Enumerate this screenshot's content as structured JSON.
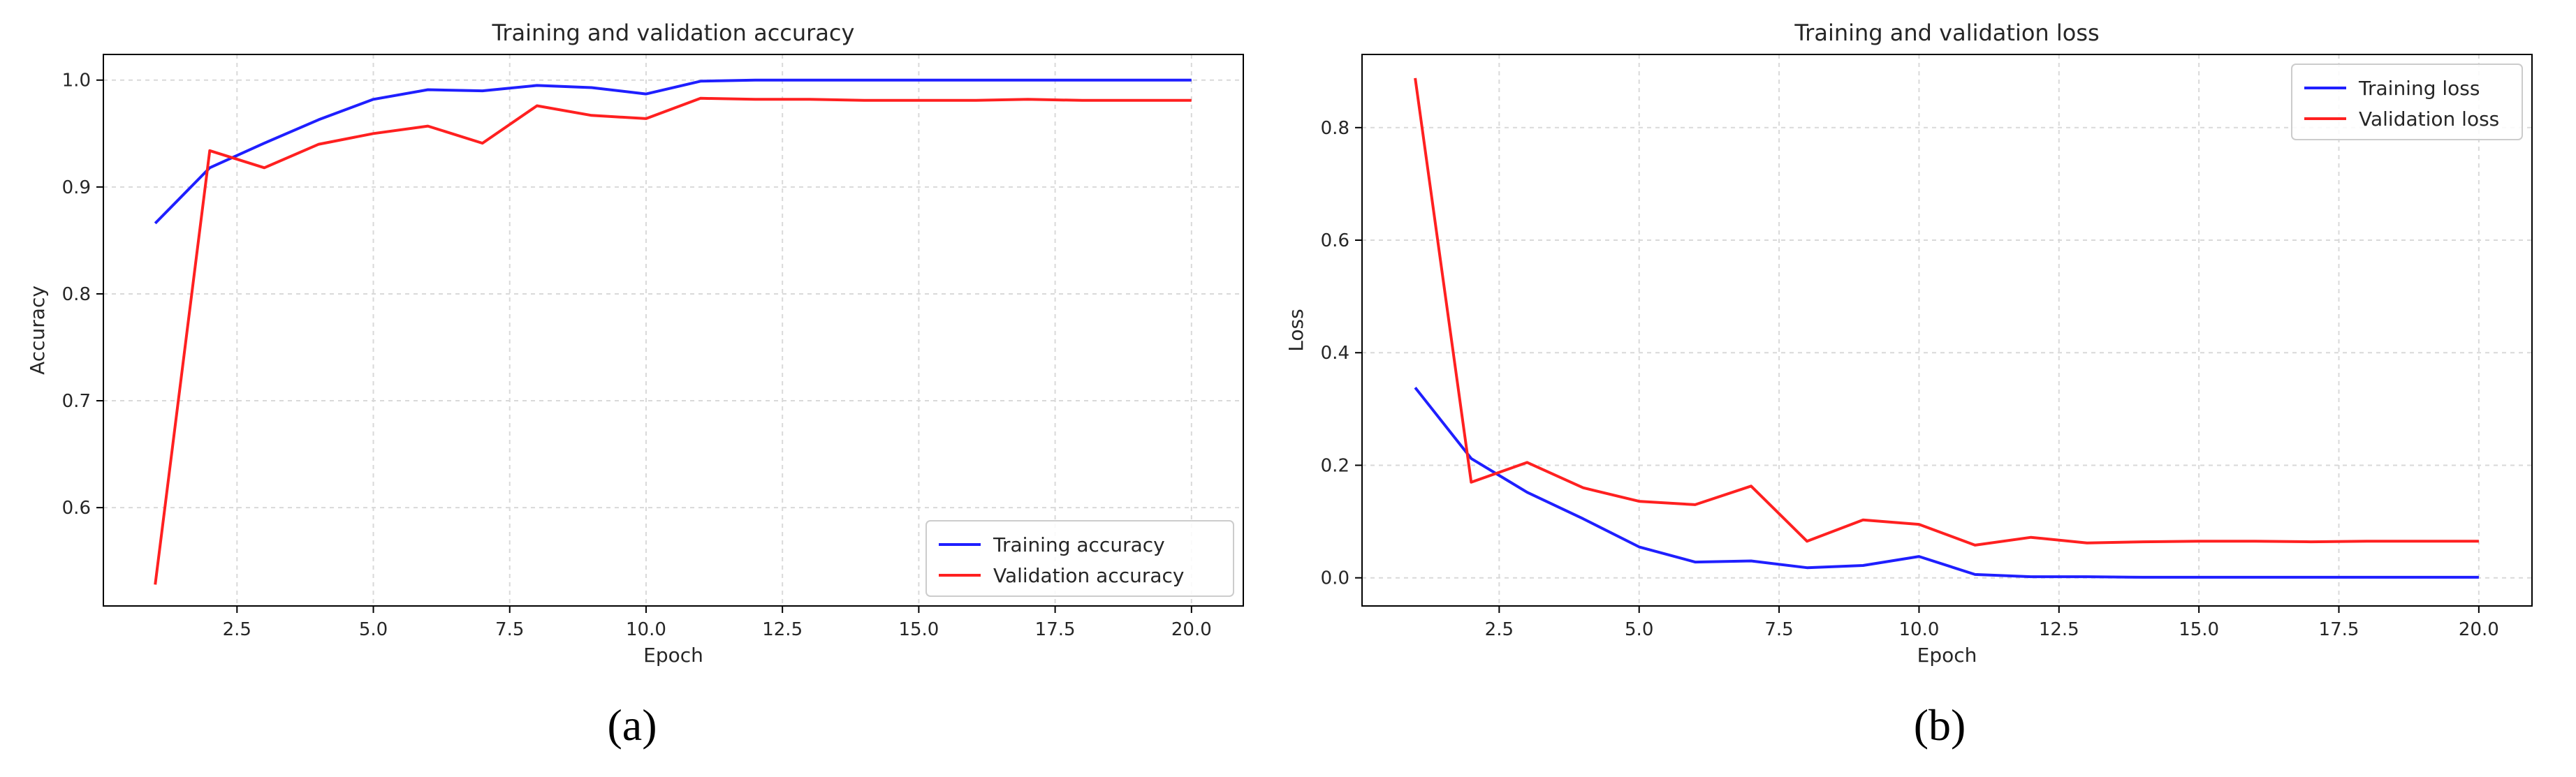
{
  "chart_data": [
    {
      "type": "line",
      "title": "Training and validation accuracy",
      "xlabel": "Epoch",
      "ylabel": "Accuracy",
      "panel_label": "(a)",
      "xlim": [
        0.05,
        20.95
      ],
      "ylim": [
        0.508,
        1.024
      ],
      "xticks": [
        2.5,
        5.0,
        7.5,
        10.0,
        12.5,
        15.0,
        17.5,
        20.0
      ],
      "xtick_labels": [
        "2.5",
        "5.0",
        "7.5",
        "10.0",
        "12.5",
        "15.0",
        "17.5",
        "20.0"
      ],
      "yticks": [
        0.6,
        0.7,
        0.8,
        0.9,
        1.0
      ],
      "ytick_labels": [
        "0.6",
        "0.7",
        "0.8",
        "0.9",
        "1.0"
      ],
      "grid": true,
      "legend_position": "lower-right",
      "x": [
        1,
        2,
        3,
        4,
        5,
        6,
        7,
        8,
        9,
        10,
        11,
        12,
        13,
        14,
        15,
        16,
        17,
        18,
        19,
        20
      ],
      "series": [
        {
          "name": "Training accuracy",
          "color": "#1f1fff",
          "values": [
            0.866,
            0.918,
            0.941,
            0.963,
            0.982,
            0.991,
            0.99,
            0.995,
            0.993,
            0.987,
            0.999,
            1.0,
            1.0,
            1.0,
            1.0,
            1.0,
            1.0,
            1.0,
            1.0,
            1.0
          ]
        },
        {
          "name": "Validation accuracy",
          "color": "#ff2020",
          "values": [
            0.528,
            0.934,
            0.918,
            0.94,
            0.95,
            0.957,
            0.941,
            0.976,
            0.967,
            0.964,
            0.983,
            0.982,
            0.982,
            0.981,
            0.981,
            0.981,
            0.982,
            0.981,
            0.981,
            0.981
          ]
        }
      ]
    },
    {
      "type": "line",
      "title": "Training and validation loss",
      "xlabel": "Epoch",
      "ylabel": "Loss",
      "panel_label": "(b)",
      "xlim": [
        0.05,
        20.95
      ],
      "ylim": [
        -0.05,
        0.93
      ],
      "xticks": [
        2.5,
        5.0,
        7.5,
        10.0,
        12.5,
        15.0,
        17.5,
        20.0
      ],
      "xtick_labels": [
        "2.5",
        "5.0",
        "7.5",
        "10.0",
        "12.5",
        "15.0",
        "17.5",
        "20.0"
      ],
      "yticks": [
        0.0,
        0.2,
        0.4,
        0.6,
        0.8
      ],
      "ytick_labels": [
        "0.0",
        "0.2",
        "0.4",
        "0.6",
        "0.8"
      ],
      "grid": true,
      "legend_position": "top-right",
      "x": [
        1,
        2,
        3,
        4,
        5,
        6,
        7,
        8,
        9,
        10,
        11,
        12,
        13,
        14,
        15,
        16,
        17,
        18,
        19,
        20
      ],
      "series": [
        {
          "name": "Training loss",
          "color": "#1f1fff",
          "values": [
            0.338,
            0.212,
            0.152,
            0.105,
            0.055,
            0.028,
            0.03,
            0.018,
            0.022,
            0.038,
            0.006,
            0.002,
            0.002,
            0.001,
            0.001,
            0.001,
            0.001,
            0.001,
            0.001,
            0.001
          ]
        },
        {
          "name": "Validation loss",
          "color": "#ff2020",
          "values": [
            0.888,
            0.17,
            0.205,
            0.16,
            0.136,
            0.13,
            0.163,
            0.065,
            0.103,
            0.095,
            0.058,
            0.072,
            0.062,
            0.064,
            0.065,
            0.065,
            0.064,
            0.065,
            0.065,
            0.065
          ]
        }
      ]
    }
  ]
}
